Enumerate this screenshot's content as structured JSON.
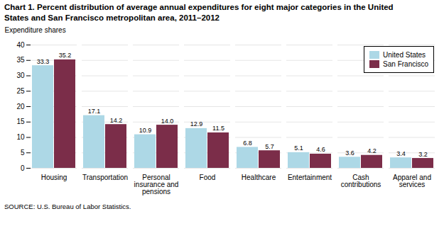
{
  "chart_data": {
    "type": "bar",
    "title": "Chart 1. Percent distribution of average annual expenditures for eight major categories in the United\nStates and San Francisco metropolitan area, 2011–2012",
    "ylabel": "Expenditure shares",
    "source": "SOURCE:  U.S. Bureau of Labor Statistics.",
    "categories": [
      "Housing",
      "Transportation",
      "Personal\ninsurance and\npensions",
      "Food",
      "Healthcare",
      "Entertainment",
      "Cash\ncontributions",
      "Apparel and\nservices"
    ],
    "series": [
      {
        "name": "United States",
        "color": "#ADD8E6",
        "values": [
          33.3,
          17.1,
          10.9,
          12.9,
          6.8,
          5.1,
          3.6,
          3.4
        ],
        "value_labels": [
          "33.3",
          "17.1",
          "10.9",
          "12.9",
          "6.8",
          "5.1",
          "3.6",
          "3.4"
        ]
      },
      {
        "name": "San Francisco",
        "color": "#7B2D49",
        "values": [
          35.2,
          14.2,
          14.0,
          11.5,
          5.7,
          4.6,
          4.2,
          3.2
        ],
        "value_labels": [
          "35.2",
          "14.2",
          "14.0",
          "11.5",
          "5.7",
          "4.6",
          "4.2",
          "3.2"
        ]
      }
    ],
    "ylim": [
      0,
      40
    ],
    "yticks": [
      0,
      5,
      10,
      15,
      20,
      25,
      30,
      35,
      40
    ],
    "grid": true,
    "legend": "upper right",
    "data_labels": true
  }
}
